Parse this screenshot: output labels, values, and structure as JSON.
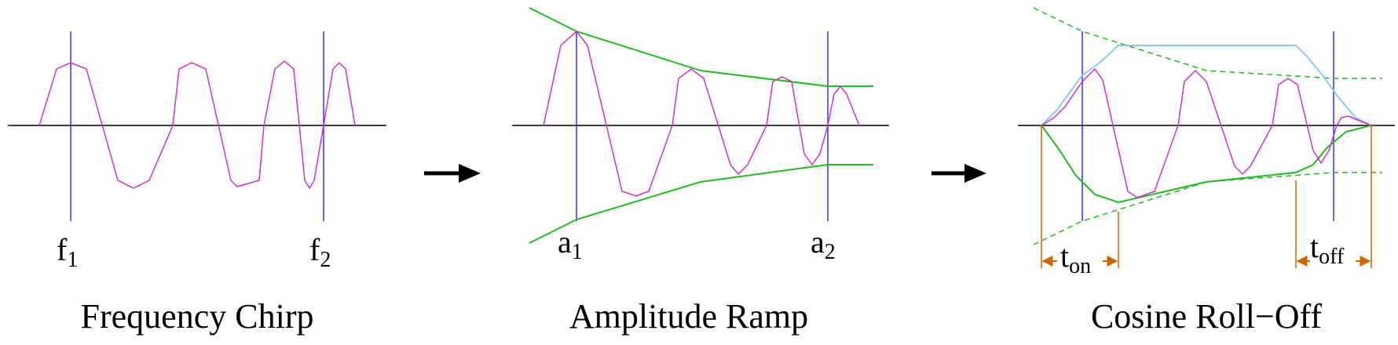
{
  "panels": [
    {
      "id": "frequency-chirp",
      "caption": "Frequency Chirp",
      "markers": [
        {
          "base": "f",
          "sub": "1"
        },
        {
          "base": "f",
          "sub": "2"
        }
      ]
    },
    {
      "id": "amplitude-ramp",
      "caption": "Amplitude Ramp",
      "markers": [
        {
          "base": "a",
          "sub": "1"
        },
        {
          "base": "a",
          "sub": "2"
        }
      ]
    },
    {
      "id": "cosine-roll-off",
      "caption": "Cosine Roll−Off",
      "markers": [
        {
          "base": "t",
          "sub": "on"
        },
        {
          "base": "t",
          "sub": "off"
        }
      ]
    }
  ],
  "arrows": [
    "process-arrow-1",
    "process-arrow-2"
  ],
  "colors": {
    "waveform": "#cc33cc",
    "marker_line": "#3333dd",
    "envelope": "#22bb22",
    "window": "#88ccee",
    "timing": "#cc6600",
    "axis": "#000000"
  }
}
